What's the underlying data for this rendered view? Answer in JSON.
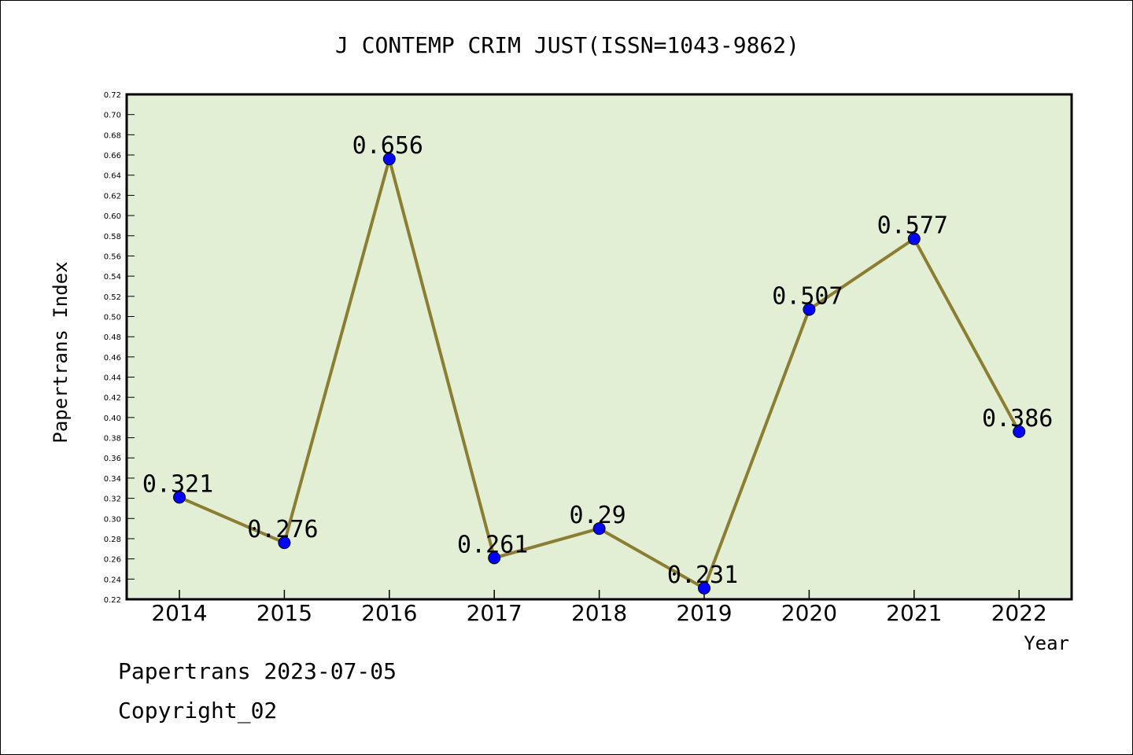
{
  "chart_data": {
    "type": "line",
    "title": "J CONTEMP CRIM JUST(ISSN=1043-9862)",
    "xlabel": "Year",
    "ylabel": "Papertrans Index",
    "categories": [
      "2014",
      "2015",
      "2016",
      "2017",
      "2018",
      "2019",
      "2020",
      "2021",
      "2022"
    ],
    "values": [
      0.321,
      0.276,
      0.656,
      0.261,
      0.29,
      0.231,
      0.507,
      0.577,
      0.386
    ],
    "value_labels": [
      "0.321",
      "0.276",
      "0.656",
      "0.261",
      "0.29",
      "0.231",
      "0.507",
      "0.577",
      "0.386"
    ],
    "ylim": [
      0.22,
      0.72
    ],
    "ytick_step": 0.02,
    "grid": false,
    "legend": "none",
    "colors": {
      "plot_background": "#e2efd5",
      "line": "#8b7d32",
      "marker": "#0000ff"
    }
  },
  "footer": {
    "line1": "Papertrans 2023-07-05",
    "line2": "Copyright_02"
  }
}
